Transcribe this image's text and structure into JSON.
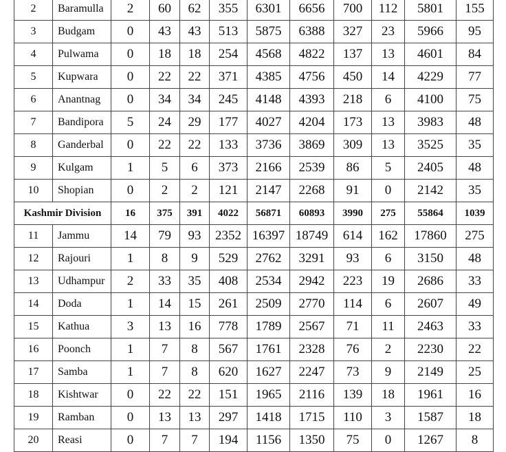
{
  "rows": [
    {
      "sn": "2",
      "name": "Baramulla",
      "v": [
        "2",
        "60",
        "62",
        "355",
        "6301",
        "6656",
        "700",
        "112",
        "5801",
        "155"
      ]
    },
    {
      "sn": "3",
      "name": "Budgam",
      "v": [
        "0",
        "43",
        "43",
        "513",
        "5875",
        "6388",
        "327",
        "23",
        "5966",
        "95"
      ]
    },
    {
      "sn": "4",
      "name": "Pulwama",
      "v": [
        "0",
        "18",
        "18",
        "254",
        "4568",
        "4822",
        "137",
        "13",
        "4601",
        "84"
      ]
    },
    {
      "sn": "5",
      "name": "Kupwara",
      "v": [
        "0",
        "22",
        "22",
        "371",
        "4385",
        "4756",
        "450",
        "14",
        "4229",
        "77"
      ]
    },
    {
      "sn": "6",
      "name": "Anantnag",
      "v": [
        "0",
        "34",
        "34",
        "245",
        "4148",
        "4393",
        "218",
        "6",
        "4100",
        "75"
      ]
    },
    {
      "sn": "7",
      "name": "Bandipora",
      "v": [
        "5",
        "24",
        "29",
        "177",
        "4027",
        "4204",
        "173",
        "13",
        "3983",
        "48"
      ]
    },
    {
      "sn": "8",
      "name": "Ganderbal",
      "v": [
        "0",
        "22",
        "22",
        "133",
        "3736",
        "3869",
        "309",
        "13",
        "3525",
        "35"
      ]
    },
    {
      "sn": "9",
      "name": "Kulgam",
      "v": [
        "1",
        "5",
        "6",
        "373",
        "2166",
        "2539",
        "86",
        "5",
        "2405",
        "48"
      ]
    },
    {
      "sn": "10",
      "name": "Shopian",
      "v": [
        "0",
        "2",
        "2",
        "121",
        "2147",
        "2268",
        "91",
        "0",
        "2142",
        "35"
      ]
    },
    {
      "total": true,
      "name": "Kashmir Division",
      "v": [
        "16",
        "375",
        "391",
        "4022",
        "56871",
        "60893",
        "3990",
        "275",
        "55864",
        "1039"
      ]
    },
    {
      "sn": "11",
      "name": "Jammu",
      "v": [
        "14",
        "79",
        "93",
        "2352",
        "16397",
        "18749",
        "614",
        "162",
        "17860",
        "275"
      ]
    },
    {
      "sn": "12",
      "name": "Rajouri",
      "v": [
        "1",
        "8",
        "9",
        "529",
        "2762",
        "3291",
        "93",
        "6",
        "3150",
        "48"
      ]
    },
    {
      "sn": "13",
      "name": "Udhampur",
      "v": [
        "2",
        "33",
        "35",
        "408",
        "2534",
        "2942",
        "223",
        "19",
        "2686",
        "33"
      ]
    },
    {
      "sn": "14",
      "name": "Doda",
      "v": [
        "1",
        "14",
        "15",
        "261",
        "2509",
        "2770",
        "114",
        "6",
        "2607",
        "49"
      ]
    },
    {
      "sn": "15",
      "name": "Kathua",
      "v": [
        "3",
        "13",
        "16",
        "778",
        "1789",
        "2567",
        "71",
        "11",
        "2463",
        "33"
      ]
    },
    {
      "sn": "16",
      "name": "Poonch",
      "v": [
        "1",
        "7",
        "8",
        "567",
        "1761",
        "2328",
        "76",
        "2",
        "2230",
        "22"
      ]
    },
    {
      "sn": "17",
      "name": "Samba",
      "v": [
        "1",
        "7",
        "8",
        "620",
        "1627",
        "2247",
        "73",
        "9",
        "2149",
        "25"
      ]
    },
    {
      "sn": "18",
      "name": "Kishtwar",
      "v": [
        "0",
        "22",
        "22",
        "151",
        "1965",
        "2116",
        "139",
        "18",
        "1961",
        "16"
      ]
    },
    {
      "sn": "19",
      "name": "Ramban",
      "v": [
        "0",
        "13",
        "13",
        "297",
        "1418",
        "1715",
        "110",
        "3",
        "1587",
        "18"
      ]
    },
    {
      "sn": "20",
      "name": "Reasi",
      "v": [
        "0",
        "7",
        "7",
        "194",
        "1156",
        "1350",
        "75",
        "0",
        "1267",
        "8"
      ]
    }
  ]
}
